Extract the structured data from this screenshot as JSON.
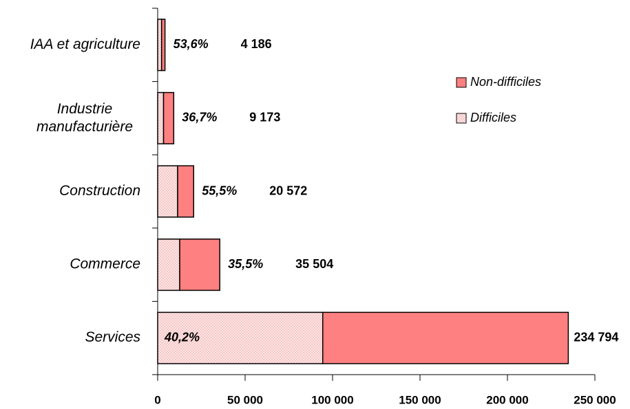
{
  "chart_data": {
    "type": "stacked_barh",
    "categories": [
      "IAA et agriculture",
      [
        "Industrie",
        "manufacturière"
      ],
      "Construction",
      "Commerce",
      "Services"
    ],
    "series": [
      {
        "name": "Difficiles",
        "color": "#fde3e3",
        "values": [
          2244,
          3367,
          11417,
          12604,
          94387
        ]
      },
      {
        "name": "Non-difficiles",
        "color": "#ff8080",
        "values": [
          1942,
          5806,
          9155,
          22900,
          140407
        ]
      }
    ],
    "shares": {
      "values": [
        53.6,
        36.7,
        55.5,
        35.5,
        40.2
      ],
      "value_labels": [
        "53,6%",
        "36,7%",
        "55,5%",
        "35,5%",
        "40,2%"
      ]
    },
    "totals": {
      "values": [
        4186,
        9173,
        20572,
        35504,
        234794
      ],
      "value_labels": [
        "4 186",
        "9 173",
        "20 572",
        "35 504",
        "234 794"
      ]
    },
    "xlim": [
      0,
      250000
    ],
    "xticks": [
      0,
      {
        "value": 50000,
        "label": "50 000"
      },
      {
        "value": 100000,
        "label": "100 000"
      },
      {
        "value": 150000,
        "label": "150 000"
      },
      {
        "value": 200000,
        "label": "200 000"
      },
      {
        "value": 250000,
        "label": "250 000"
      }
    ],
    "legend": "right"
  }
}
